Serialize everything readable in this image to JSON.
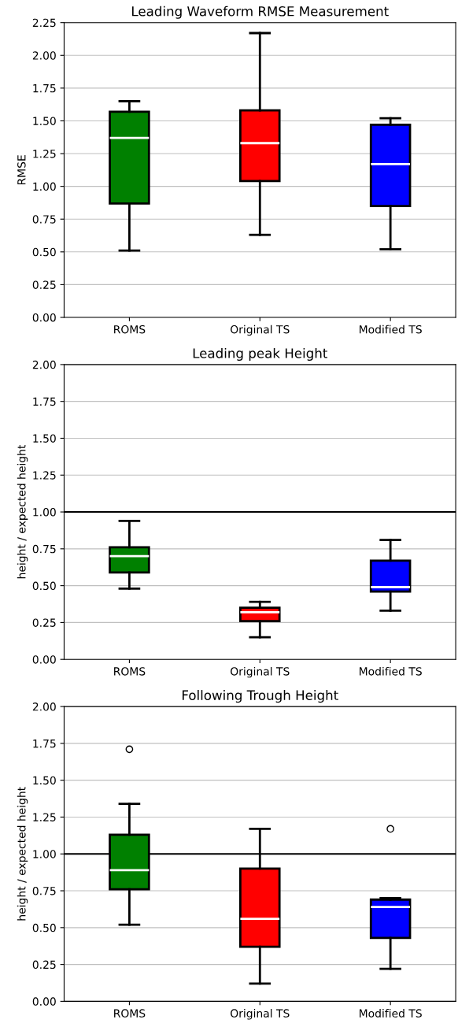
{
  "chart_data": [
    {
      "type": "box",
      "title": "Leading Waveform RMSE Measurement",
      "ylabel": "RMSE",
      "categories": [
        "ROMS",
        "Original TS",
        "Modified TS"
      ],
      "colors": [
        "#008000",
        "#ff0000",
        "#0000ff"
      ],
      "boxes": [
        {
          "low": 0.51,
          "q1": 0.87,
          "median": 1.37,
          "q3": 1.57,
          "high": 1.65
        },
        {
          "low": 0.63,
          "q1": 1.04,
          "median": 1.33,
          "q3": 1.58,
          "high": 2.17
        },
        {
          "low": 0.52,
          "q1": 0.85,
          "median": 1.17,
          "q3": 1.47,
          "high": 1.52
        }
      ],
      "ylim": [
        0,
        2.25
      ],
      "yticks": [
        {
          "value": 0,
          "label": "0.00"
        },
        {
          "value": 0.25,
          "label": "0.25"
        },
        {
          "value": 0.5,
          "label": "0.50"
        },
        {
          "value": 0.75,
          "label": "0.75"
        },
        {
          "value": 1,
          "label": "1.00"
        },
        {
          "value": 1.25,
          "label": "1.25"
        },
        {
          "value": 1.5,
          "label": "1.50"
        },
        {
          "value": 1.75,
          "label": "1.75"
        },
        {
          "value": 2,
          "label": "2.00"
        },
        {
          "value": 2.25,
          "label": "2.25"
        }
      ],
      "grid": "y"
    },
    {
      "type": "box",
      "title": "Leading peak Height",
      "ylabel": "height / expected height",
      "categories": [
        "ROMS",
        "Original TS",
        "Modified TS"
      ],
      "colors": [
        "#008000",
        "#ff0000",
        "#0000ff"
      ],
      "boxes": [
        {
          "low": 0.48,
          "q1": 0.59,
          "median": 0.7,
          "q3": 0.76,
          "high": 0.94
        },
        {
          "low": 0.15,
          "q1": 0.26,
          "median": 0.32,
          "q3": 0.35,
          "high": 0.39
        },
        {
          "low": 0.33,
          "q1": 0.46,
          "median": 0.49,
          "q3": 0.67,
          "high": 0.81
        }
      ],
      "ylim": [
        0,
        2
      ],
      "yticks": [
        {
          "value": 0,
          "label": "0.00"
        },
        {
          "value": 0.25,
          "label": "0.25"
        },
        {
          "value": 0.5,
          "label": "0.50"
        },
        {
          "value": 0.75,
          "label": "0.75"
        },
        {
          "value": 1,
          "label": "1.00"
        },
        {
          "value": 1.25,
          "label": "1.25"
        },
        {
          "value": 1.5,
          "label": "1.50"
        },
        {
          "value": 1.75,
          "label": "1.75"
        },
        {
          "value": 2,
          "label": "2.00"
        }
      ],
      "grid": "y",
      "ref_lines": [
        {
          "axis": "y",
          "value": 1,
          "color": "#000000"
        }
      ]
    },
    {
      "type": "box",
      "title": "Following Trough Height",
      "ylabel": "height / expected height",
      "categories": [
        "ROMS",
        "Original TS",
        "Modified TS"
      ],
      "colors": [
        "#008000",
        "#ff0000",
        "#0000ff"
      ],
      "boxes": [
        {
          "low": 0.52,
          "q1": 0.76,
          "median": 0.89,
          "q3": 1.13,
          "high": 1.34,
          "outliers": [
            1.71
          ]
        },
        {
          "low": 0.12,
          "q1": 0.37,
          "median": 0.56,
          "q3": 0.9,
          "high": 1.17
        },
        {
          "low": 0.22,
          "q1": 0.43,
          "median": 0.64,
          "q3": 0.69,
          "high": 0.7,
          "outliers": [
            1.17
          ]
        }
      ],
      "ylim": [
        0,
        2
      ],
      "yticks": [
        {
          "value": 0,
          "label": "0.00"
        },
        {
          "value": 0.25,
          "label": "0.25"
        },
        {
          "value": 0.5,
          "label": "0.50"
        },
        {
          "value": 0.75,
          "label": "0.75"
        },
        {
          "value": 1,
          "label": "1.00"
        },
        {
          "value": 1.25,
          "label": "1.25"
        },
        {
          "value": 1.5,
          "label": "1.50"
        },
        {
          "value": 1.75,
          "label": "1.75"
        },
        {
          "value": 2,
          "label": "2.00"
        }
      ],
      "grid": "y",
      "ref_lines": [
        {
          "axis": "y",
          "value": 1,
          "color": "#000000"
        }
      ]
    }
  ]
}
